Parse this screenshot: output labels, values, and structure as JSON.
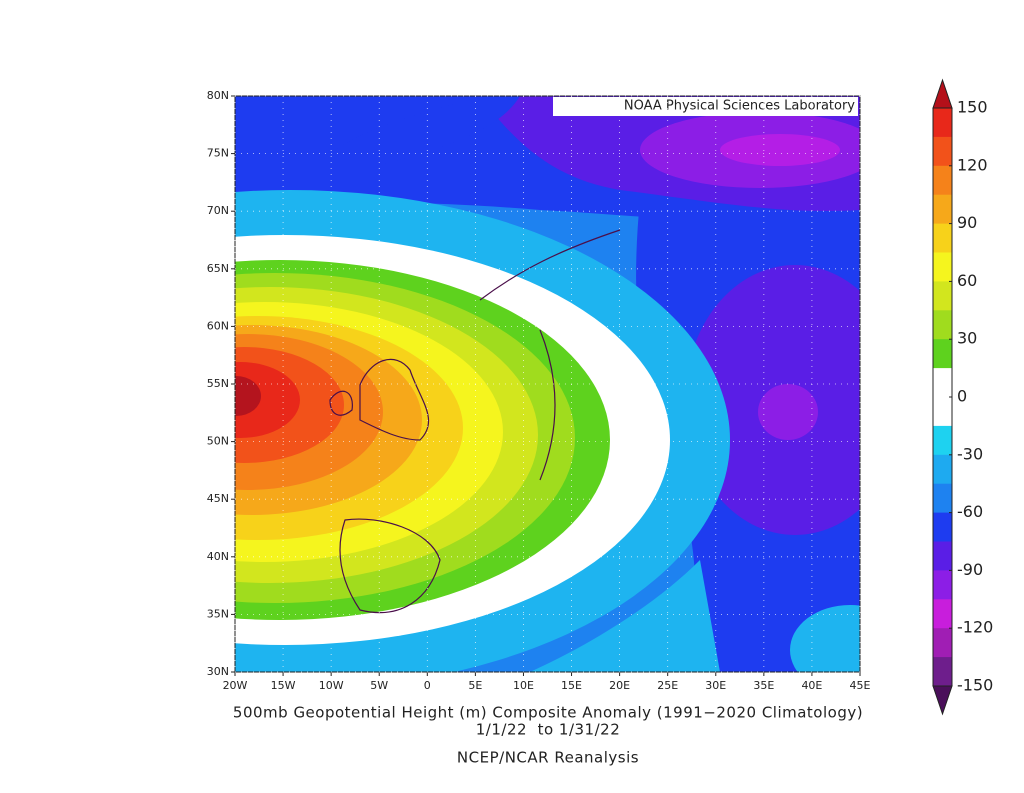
{
  "banner": "NOAA Physical Sciences Laboratory",
  "map": {
    "xticks": [
      "20W",
      "15W",
      "10W",
      "5W",
      "0",
      "5E",
      "10E",
      "15E",
      "20E",
      "25E",
      "30E",
      "35E",
      "40E",
      "45E"
    ],
    "yticks": [
      "80N",
      "75N",
      "70N",
      "65N",
      "60N",
      "55N",
      "50N",
      "45N",
      "40N",
      "35N",
      "30N"
    ]
  },
  "colorbar": {
    "ticks": [
      150,
      120,
      90,
      60,
      30,
      0,
      -30,
      -60,
      -90,
      -120,
      -150
    ],
    "colors": [
      "#e8281a",
      "#f2521a",
      "#f5821a",
      "#f6a81a",
      "#f7d21a",
      "#f5f51e",
      "#d2e61e",
      "#a0dc1e",
      "#5ed21e",
      "#ffffff",
      "#ffffff",
      "#1ed2f0",
      "#1eaaf0",
      "#1e82f0",
      "#1e3cf0",
      "#5a1ee6",
      "#8c1ee6",
      "#c81edc",
      "#a01eb4",
      "#6e1e8c"
    ],
    "over": "#b4101a",
    "under": "#4a0f5a"
  },
  "caption": {
    "title": "500mb Geopotential Height (m) Composite Anomaly (1991−2020 Climatology)",
    "dates": "1/1/22  to 1/31/22",
    "source": "NCEP/NCAR Reanalysis"
  }
}
